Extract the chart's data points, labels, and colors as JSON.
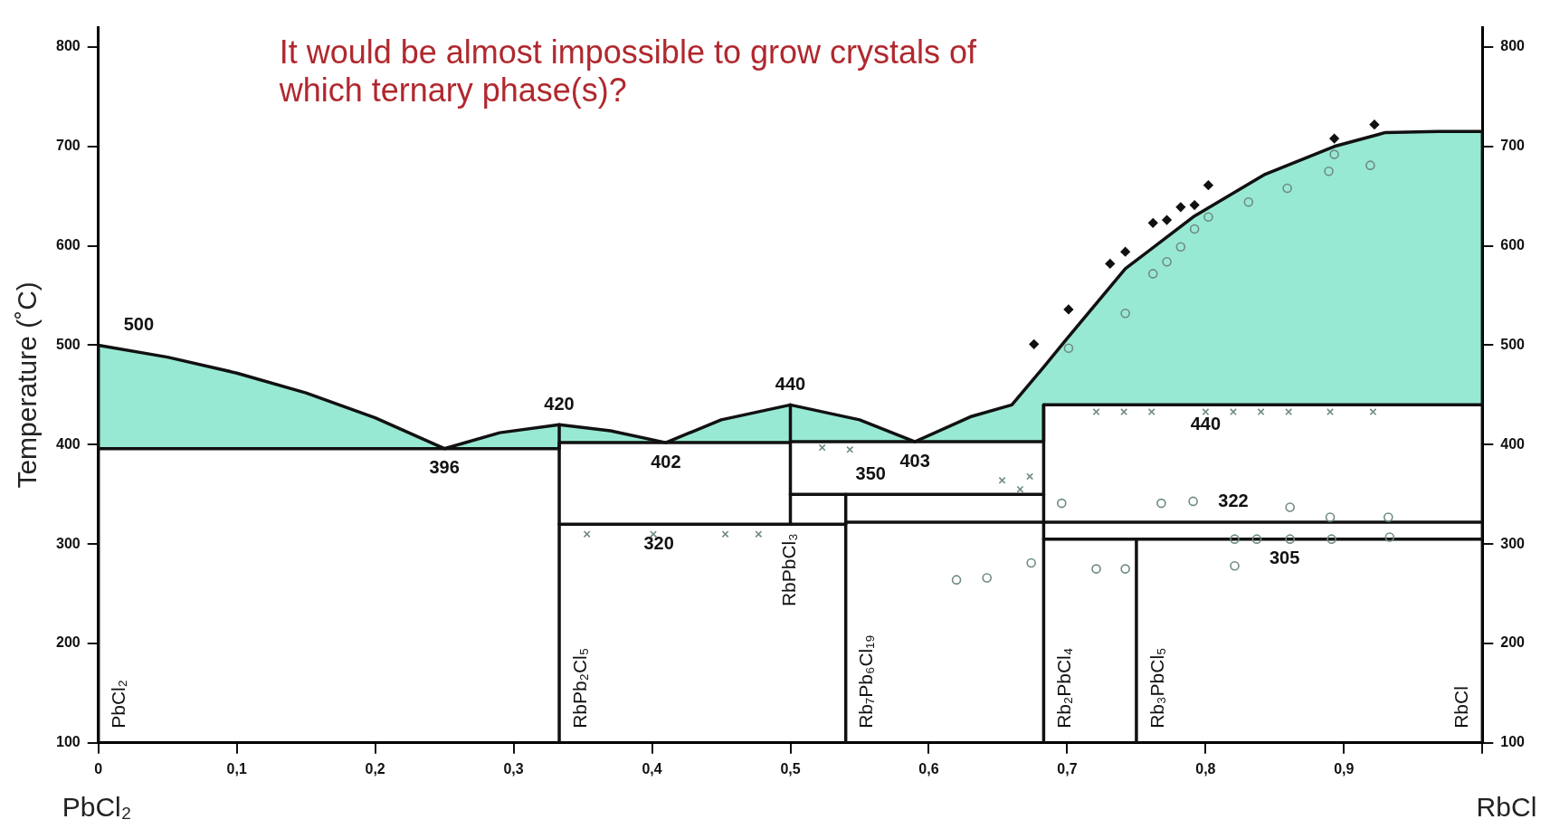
{
  "chart_data": {
    "type": "line",
    "title": "It would be almost impossible to grow crystals of which ternary phase(s)?",
    "ylabel": "Temperature (˚C)",
    "xlim": [
      0,
      1
    ],
    "xticks": [
      {
        "value": 0,
        "label": "0"
      },
      {
        "value": 0.1,
        "label": "0,1"
      },
      {
        "value": 0.2,
        "label": "0,2"
      },
      {
        "value": 0.3,
        "label": "0,3"
      },
      {
        "value": 0.4,
        "label": "0,4"
      },
      {
        "value": 0.5,
        "label": "0,5"
      },
      {
        "value": 0.6,
        "label": "0,6"
      },
      {
        "value": 0.7,
        "label": "0,7"
      },
      {
        "value": 0.8,
        "label": "0,8"
      },
      {
        "value": 0.9,
        "label": "0,9"
      },
      {
        "value": 1,
        "label": null
      }
    ],
    "ylim": [
      100,
      820
    ],
    "yticks": [
      100,
      200,
      300,
      400,
      500,
      600,
      700,
      800
    ],
    "y2lim": [
      100,
      820
    ],
    "y2ticks": [
      100,
      200,
      300,
      400,
      500,
      600,
      700,
      800
    ],
    "legend": false,
    "series": [
      {
        "color": "#111111",
        "marker": "none",
        "x": [
          0,
          0.05,
          0.1,
          0.15,
          0.2,
          0.25,
          0.29,
          0.333,
          0.333,
          0.37,
          0.41,
          0.45,
          0.5,
          0.5,
          0.55,
          0.59,
          0.63,
          0.66,
          0.683,
          0.683,
          0.7,
          0.742,
          0.792,
          0.843,
          0.893,
          0.93,
          0.968,
          1
        ],
        "values": [
          500,
          488,
          472,
          452,
          427,
          396,
          412,
          420,
          420,
          414,
          402,
          425,
          440,
          440,
          425,
          403,
          428,
          440,
          478,
          478,
          507,
          577,
          630,
          672,
          700,
          714,
          715,
          715
        ]
      },
      {
        "color": "#111111",
        "marker": "none",
        "x": [
          0,
          0.05,
          0.1,
          0.15,
          0.2,
          0.25,
          0.29,
          0.333,
          0.333,
          0.37,
          0.41,
          0.45,
          0.5,
          0.5,
          0.55,
          0.59,
          0.63,
          0.66,
          0.683,
          0.683,
          0.7,
          0.742,
          0.792,
          0.843,
          0.893,
          0.93,
          0.968,
          1
        ],
        "values": [
          396,
          396,
          396,
          396,
          396,
          396,
          396,
          396,
          402,
          402,
          402,
          402,
          402,
          403,
          403,
          403,
          403,
          403,
          403,
          440,
          440,
          440,
          440,
          440,
          440,
          440,
          440,
          440
        ]
      },
      {
        "color": "#111111",
        "marker": "none",
        "x": [
          0,
          0
        ],
        "values": [
          100,
          500
        ]
      },
      {
        "color": "#111111",
        "marker": "none",
        "x": [
          1,
          1
        ],
        "values": [
          100,
          715
        ]
      },
      {
        "color": "#111111",
        "marker": "none",
        "x": [
          0.333,
          0.54
        ],
        "values": [
          320,
          320
        ]
      },
      {
        "color": "#111111",
        "marker": "none",
        "x": [
          0.5,
          0.683
        ],
        "values": [
          350,
          350
        ]
      },
      {
        "color": "#111111",
        "marker": "none",
        "x": [
          0.54,
          1
        ],
        "values": [
          322,
          322
        ]
      },
      {
        "color": "#111111",
        "marker": "none",
        "x": [
          0.683,
          1
        ],
        "values": [
          305,
          305
        ]
      },
      {
        "color": "#111111",
        "marker": "none",
        "x": [
          0.333,
          0.333
        ],
        "values": [
          100,
          420
        ]
      },
      {
        "color": "#111111",
        "marker": "none",
        "x": [
          0.5,
          0.5
        ],
        "values": [
          320,
          440
        ]
      },
      {
        "color": "#111111",
        "marker": "none",
        "x": [
          0.54,
          0.54
        ],
        "values": [
          100,
          350
        ]
      },
      {
        "color": "#111111",
        "marker": "none",
        "x": [
          0.683,
          0.683
        ],
        "values": [
          100,
          440
        ]
      },
      {
        "color": "#111111",
        "marker": "none",
        "x": [
          0.75,
          0.75
        ],
        "values": [
          100,
          305
        ]
      },
      {
        "type": "scatter",
        "color": "#111111",
        "marker": "diamond",
        "x": [
          0.676,
          0.701,
          0.731,
          0.742,
          0.762,
          0.772,
          0.782,
          0.792,
          0.802,
          0.893,
          0.922
        ],
        "values": [
          501,
          536,
          582,
          594,
          623,
          626,
          639,
          641,
          661,
          708,
          722
        ]
      },
      {
        "type": "scatter",
        "color": "#6f8a83",
        "marker": "circle",
        "x": [
          0.701,
          0.742,
          0.762,
          0.772,
          0.782,
          0.792,
          0.802,
          0.831,
          0.859,
          0.889,
          0.893,
          0.919,
          0.696,
          0.768,
          0.791,
          0.861,
          0.89,
          0.932,
          0.821,
          0.837,
          0.861,
          0.891,
          0.933,
          0.721,
          0.742,
          0.821,
          0.62,
          0.642,
          0.674
        ],
        "values": [
          497,
          532,
          572,
          584,
          599,
          617,
          629,
          644,
          658,
          675,
          692,
          681,
          341,
          341,
          343,
          337,
          327,
          327,
          305,
          305,
          305,
          305,
          307,
          275,
          275,
          278,
          264,
          266,
          281
        ]
      },
      {
        "type": "scatter",
        "color": "#6f8a83",
        "marker": "cross",
        "x": [
          0.721,
          0.741,
          0.761,
          0.8,
          0.82,
          0.84,
          0.86,
          0.89,
          0.921,
          0.353,
          0.401,
          0.453,
          0.477,
          0.523,
          0.543,
          0.653,
          0.673,
          0.666
        ],
        "values": [
          433,
          433,
          433,
          433,
          433,
          433,
          433,
          433,
          433,
          310,
          310,
          310,
          310,
          397,
          395,
          364,
          368,
          355
        ]
      }
    ],
    "annotations": [
      {
        "text": "500",
        "x": 0,
        "y": 500
      },
      {
        "text": "396",
        "x": 0.25,
        "y": 396
      },
      {
        "text": "420",
        "x": 0.333,
        "y": 420
      },
      {
        "text": "402",
        "x": 0.41,
        "y": 402
      },
      {
        "text": "440",
        "x": 0.5,
        "y": 440
      },
      {
        "text": "320",
        "x": 0.405,
        "y": 320
      },
      {
        "text": "350",
        "x": 0.558,
        "y": 350
      },
      {
        "text": "403",
        "x": 0.59,
        "y": 403
      },
      {
        "text": "440",
        "x": 0.8,
        "y": 440
      },
      {
        "text": "322",
        "x": 0.82,
        "y": 322
      },
      {
        "text": "305",
        "x": 0.857,
        "y": 305
      },
      {
        "text": "PbCl₂",
        "x": 0,
        "y": 100
      },
      {
        "text": "RbPb₂Cl₅",
        "x": 0.333,
        "y": 100
      },
      {
        "text": "RbPbCl₃",
        "x": 0.5,
        "y": 320
      },
      {
        "text": "Rb₇Pb₆Cl₁₉",
        "x": 0.54,
        "y": 100
      },
      {
        "text": "Rb₂PbCl₄",
        "x": 0.683,
        "y": 100
      },
      {
        "text": "Rb₃PbCl₅",
        "x": 0.75,
        "y": 100
      },
      {
        "text": "RbCl",
        "x": 1,
        "y": 100
      },
      "PbCl₂",
      "RbCl"
    ]
  }
}
